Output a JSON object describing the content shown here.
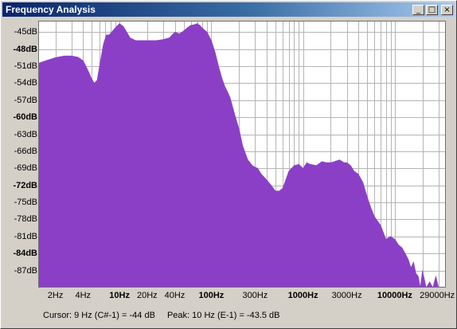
{
  "window": {
    "title": "Frequency Analysis",
    "minimize_glyph": "_",
    "maximize_glyph": "□",
    "close_glyph": "×"
  },
  "status": {
    "cursor": "Cursor: 9 Hz (C#-1) = -44 dB",
    "peak": "Peak: 10 Hz (E-1) = -43.5 dB"
  },
  "colors": {
    "fill": "#8b3fc6",
    "grid": "#b4b4b4",
    "background": "#ffffff"
  },
  "chart_data": {
    "type": "area",
    "xscale": "log",
    "ylim": [
      -90,
      -43
    ],
    "xlim": [
      1.3,
      36000
    ],
    "y_ticks": [
      {
        "label": "-45dB",
        "value": -45,
        "bold": false
      },
      {
        "label": "-48dB",
        "value": -48,
        "bold": true
      },
      {
        "label": "-51dB",
        "value": -51,
        "bold": false
      },
      {
        "label": "-54dB",
        "value": -54,
        "bold": false
      },
      {
        "label": "-57dB",
        "value": -57,
        "bold": false
      },
      {
        "label": "-60dB",
        "value": -60,
        "bold": true
      },
      {
        "label": "-63dB",
        "value": -63,
        "bold": false
      },
      {
        "label": "-66dB",
        "value": -66,
        "bold": false
      },
      {
        "label": "-69dB",
        "value": -69,
        "bold": false
      },
      {
        "label": "-72dB",
        "value": -72,
        "bold": true
      },
      {
        "label": "-75dB",
        "value": -75,
        "bold": false
      },
      {
        "label": "-78dB",
        "value": -78,
        "bold": false
      },
      {
        "label": "-81dB",
        "value": -81,
        "bold": false
      },
      {
        "label": "-84dB",
        "value": -84,
        "bold": true
      },
      {
        "label": "-87dB",
        "value": -87,
        "bold": false
      }
    ],
    "x_ticks": [
      {
        "label": "2Hz",
        "value": 2,
        "bold": false
      },
      {
        "label": "4Hz",
        "value": 4,
        "bold": false
      },
      {
        "label": "10Hz",
        "value": 10,
        "bold": true
      },
      {
        "label": "20Hz",
        "value": 20,
        "bold": false
      },
      {
        "label": "40Hz",
        "value": 40,
        "bold": false
      },
      {
        "label": "100Hz",
        "value": 100,
        "bold": true
      },
      {
        "label": "300Hz",
        "value": 300,
        "bold": false
      },
      {
        "label": "1000Hz",
        "value": 1000,
        "bold": true
      },
      {
        "label": "3000Hz",
        "value": 3000,
        "bold": false
      },
      {
        "label": "10000Hz",
        "value": 10000,
        "bold": true
      },
      {
        "label": "29000Hz",
        "value": 29000,
        "bold": false
      }
    ],
    "series": [
      {
        "x": [
          1.3,
          1.6,
          2,
          2.5,
          3,
          3.5,
          4,
          4.3,
          4.6,
          4.9,
          5.3,
          5.7,
          6.2,
          6.7,
          7.2,
          7.7,
          8.2,
          8.7,
          9.3,
          10,
          11,
          12,
          13,
          15,
          17,
          20,
          25,
          30,
          35,
          40,
          45,
          50,
          55,
          60,
          65,
          70,
          75,
          80,
          90,
          100,
          110,
          120,
          130,
          140,
          150,
          160,
          170,
          180,
          200,
          220,
          250,
          280,
          300,
          320,
          350,
          400,
          450,
          500,
          550,
          600,
          700,
          800,
          900,
          1000,
          1100,
          1200,
          1400,
          1600,
          1800,
          2000,
          2200,
          2500,
          2800,
          3000,
          3300,
          3600,
          4000,
          4500,
          5000,
          5500,
          6000,
          7000,
          8000,
          9000,
          10000,
          11000,
          12000,
          13000,
          14000,
          15000,
          16000,
          17000,
          18000,
          19000,
          20000,
          22000,
          24000,
          26000,
          28000,
          30000,
          32000,
          34000,
          36000
        ],
        "y": [
          -50.5,
          -50,
          -49.5,
          -49.2,
          -49.2,
          -49.4,
          -50,
          -51,
          -52,
          -53,
          -54,
          -53.5,
          -50,
          -47,
          -45.5,
          -45.5,
          -45,
          -44.5,
          -44,
          -43.5,
          -44,
          -45,
          -46,
          -46.5,
          -46.5,
          -46.5,
          -46.5,
          -46.3,
          -46,
          -45,
          -45.3,
          -44.8,
          -44.2,
          -43.8,
          -43.7,
          -43.5,
          -43.8,
          -44.3,
          -45,
          -46.5,
          -48.5,
          -51,
          -53,
          -54.5,
          -55.5,
          -56.5,
          -58,
          -59.5,
          -62,
          -65,
          -67.5,
          -68.5,
          -68.8,
          -69,
          -70,
          -71,
          -72,
          -73,
          -73,
          -72.5,
          -69.5,
          -68.5,
          -68.3,
          -69,
          -68,
          -68.3,
          -68.5,
          -67.8,
          -68,
          -68,
          -67.8,
          -67.5,
          -68,
          -68,
          -68.5,
          -69.5,
          -70,
          -71.5,
          -74,
          -76,
          -77.5,
          -79,
          -81.5,
          -81,
          -81.5,
          -82.5,
          -83,
          -84,
          -85,
          -86.5,
          -85.5,
          -87.5,
          -88,
          -90,
          -87,
          -90,
          -89,
          -90,
          -88,
          -90,
          -90,
          -90,
          -90
        ]
      }
    ]
  }
}
